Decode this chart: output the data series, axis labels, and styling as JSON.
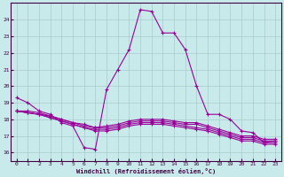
{
  "xlabel": "Windchill (Refroidissement éolien,°C)",
  "xlim": [
    -0.5,
    23.5
  ],
  "ylim": [
    15.5,
    25.0
  ],
  "yticks": [
    16,
    17,
    18,
    19,
    20,
    21,
    22,
    23,
    24
  ],
  "xticks": [
    0,
    1,
    2,
    3,
    4,
    5,
    6,
    7,
    8,
    9,
    10,
    11,
    12,
    13,
    14,
    15,
    16,
    17,
    18,
    19,
    20,
    21,
    22,
    23
  ],
  "background_color": "#c8eaea",
  "grid_color": "#a8cccc",
  "line_color": "#990099",
  "lines": [
    [
      19.3,
      19.0,
      18.5,
      18.3,
      17.8,
      17.6,
      16.3,
      16.2,
      19.8,
      21.0,
      22.2,
      24.6,
      24.5,
      23.2,
      23.2,
      22.2,
      20.0,
      18.3,
      18.3,
      18.0,
      17.3,
      17.2,
      16.6,
      16.7
    ],
    [
      18.5,
      18.4,
      18.3,
      18.2,
      18.0,
      17.8,
      17.6,
      17.5,
      17.6,
      17.7,
      17.9,
      18.0,
      18.0,
      18.0,
      17.9,
      17.8,
      17.8,
      17.6,
      17.4,
      17.2,
      17.0,
      17.0,
      16.8,
      16.8
    ],
    [
      18.5,
      18.4,
      18.3,
      18.1,
      17.9,
      17.7,
      17.5,
      17.4,
      17.4,
      17.5,
      17.7,
      17.8,
      17.8,
      17.8,
      17.7,
      17.6,
      17.5,
      17.4,
      17.2,
      17.0,
      16.8,
      16.8,
      16.6,
      16.6
    ],
    [
      18.5,
      18.4,
      18.3,
      18.1,
      17.9,
      17.7,
      17.5,
      17.3,
      17.3,
      17.4,
      17.6,
      17.7,
      17.7,
      17.7,
      17.6,
      17.5,
      17.4,
      17.3,
      17.1,
      16.9,
      16.7,
      16.7,
      16.5,
      16.5
    ],
    [
      18.5,
      18.5,
      18.4,
      18.2,
      18.0,
      17.8,
      17.7,
      17.5,
      17.5,
      17.6,
      17.8,
      17.9,
      17.9,
      17.9,
      17.8,
      17.7,
      17.7,
      17.5,
      17.3,
      17.1,
      16.9,
      16.9,
      16.7,
      16.7
    ]
  ]
}
